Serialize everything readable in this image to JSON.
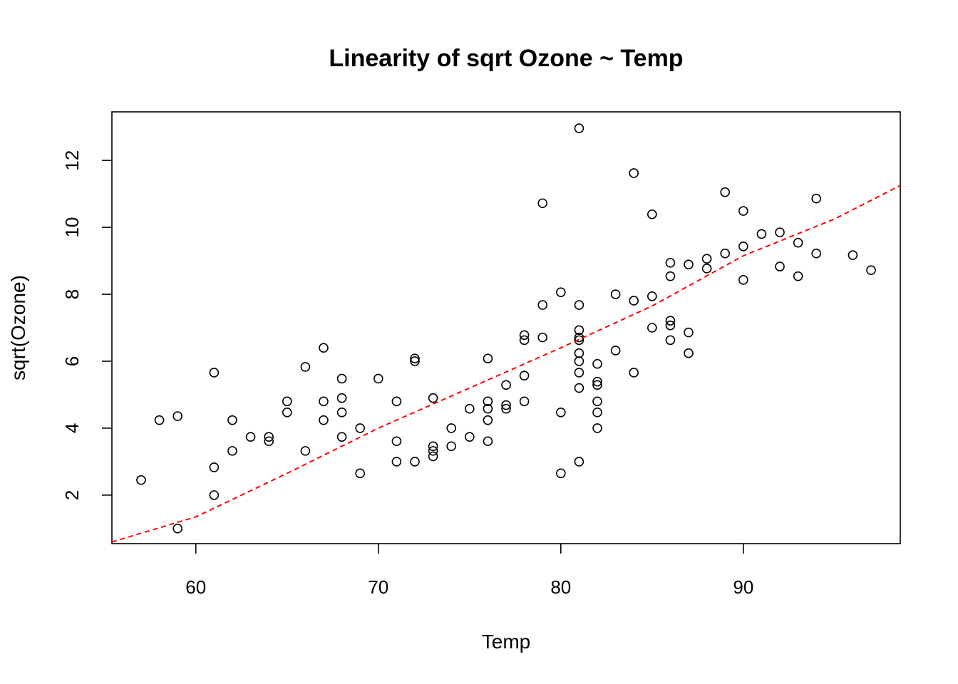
{
  "colors": {
    "background": "#ffffff",
    "points": "#000000",
    "trend_line": "#ff0000"
  },
  "chart_data": {
    "type": "scatter",
    "title": "Linearity of sqrt Ozone ~ Temp",
    "xlabel": "Temp",
    "ylabel": "sqrt(Ozone)",
    "xlim": [
      55.4,
      98.6
    ],
    "ylim": [
      0.55,
      13.45
    ],
    "xticks": [
      60,
      70,
      80,
      90
    ],
    "yticks": [
      2,
      4,
      6,
      8,
      10,
      12
    ],
    "marker": "open-circle",
    "grid": false,
    "series": [
      {
        "points": [
          [
            57,
            2.45
          ],
          [
            58,
            4.24
          ],
          [
            59,
            4.36
          ],
          [
            59,
            1.0
          ],
          [
            61,
            5.66
          ],
          [
            61,
            2.83
          ],
          [
            61,
            2.0
          ],
          [
            62,
            4.24
          ],
          [
            62,
            3.32
          ],
          [
            63,
            3.74
          ],
          [
            64,
            3.74
          ],
          [
            64,
            3.61
          ],
          [
            65,
            4.8
          ],
          [
            65,
            4.47
          ],
          [
            66,
            5.83
          ],
          [
            66,
            3.32
          ],
          [
            67,
            6.4
          ],
          [
            67,
            4.8
          ],
          [
            67,
            4.24
          ],
          [
            68,
            5.48
          ],
          [
            68,
            4.9
          ],
          [
            68,
            4.47
          ],
          [
            68,
            3.74
          ],
          [
            69,
            4.0
          ],
          [
            69,
            2.65
          ],
          [
            70,
            5.48
          ],
          [
            71,
            4.8
          ],
          [
            71,
            3.61
          ],
          [
            71,
            3.0
          ],
          [
            72,
            6.08
          ],
          [
            72,
            6.0
          ],
          [
            72,
            3.0
          ],
          [
            73,
            4.9
          ],
          [
            73,
            3.46
          ],
          [
            73,
            3.32
          ],
          [
            73,
            3.16
          ],
          [
            74,
            4.0
          ],
          [
            74,
            3.46
          ],
          [
            75,
            4.58
          ],
          [
            75,
            3.74
          ],
          [
            76,
            6.08
          ],
          [
            76,
            4.8
          ],
          [
            76,
            4.58
          ],
          [
            76,
            4.24
          ],
          [
            76,
            3.61
          ],
          [
            77,
            5.29
          ],
          [
            77,
            4.69
          ],
          [
            77,
            4.58
          ],
          [
            78,
            6.78
          ],
          [
            78,
            6.63
          ],
          [
            78,
            5.57
          ],
          [
            78,
            4.8
          ],
          [
            79,
            10.72
          ],
          [
            79,
            7.68
          ],
          [
            79,
            6.71
          ],
          [
            80,
            8.06
          ],
          [
            80,
            4.47
          ],
          [
            80,
            2.65
          ],
          [
            81,
            12.96
          ],
          [
            81,
            7.68
          ],
          [
            81,
            6.93
          ],
          [
            81,
            6.71
          ],
          [
            81,
            6.63
          ],
          [
            81,
            6.24
          ],
          [
            81,
            6.0
          ],
          [
            81,
            5.66
          ],
          [
            81,
            5.2
          ],
          [
            81,
            3.0
          ],
          [
            82,
            5.92
          ],
          [
            82,
            5.39
          ],
          [
            82,
            5.29
          ],
          [
            82,
            4.8
          ],
          [
            82,
            4.47
          ],
          [
            82,
            4.0
          ],
          [
            83,
            8.0
          ],
          [
            83,
            6.32
          ],
          [
            84,
            11.62
          ],
          [
            84,
            7.81
          ],
          [
            84,
            5.66
          ],
          [
            85,
            10.39
          ],
          [
            85,
            7.94
          ],
          [
            85,
            7.0
          ],
          [
            86,
            8.94
          ],
          [
            86,
            8.54
          ],
          [
            86,
            7.21
          ],
          [
            86,
            7.07
          ],
          [
            86,
            6.63
          ],
          [
            87,
            8.89
          ],
          [
            87,
            6.86
          ],
          [
            87,
            6.24
          ],
          [
            88,
            9.06
          ],
          [
            88,
            8.77
          ],
          [
            89,
            11.05
          ],
          [
            89,
            9.22
          ],
          [
            90,
            10.49
          ],
          [
            90,
            9.43
          ],
          [
            90,
            8.43
          ],
          [
            91,
            9.8
          ],
          [
            92,
            9.85
          ],
          [
            92,
            8.83
          ],
          [
            93,
            9.54
          ],
          [
            93,
            8.54
          ],
          [
            94,
            10.86
          ],
          [
            94,
            9.22
          ],
          [
            96,
            9.17
          ],
          [
            97,
            8.72
          ]
        ]
      }
    ],
    "trend_line": {
      "style": "dashed",
      "points": [
        [
          55.4,
          0.6
        ],
        [
          60,
          1.35
        ],
        [
          65,
          2.65
        ],
        [
          70,
          4.0
        ],
        [
          75,
          5.2
        ],
        [
          80,
          6.4
        ],
        [
          85,
          7.65
        ],
        [
          90,
          9.15
        ],
        [
          95,
          10.25
        ],
        [
          98.6,
          11.25
        ]
      ]
    }
  }
}
